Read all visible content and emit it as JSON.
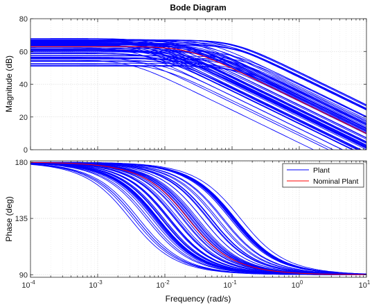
{
  "title": "Bode Diagram",
  "xlabel": "Frequency  (rad/s)",
  "legend": {
    "placement": "top-right",
    "items": [
      {
        "label": "Plant",
        "color": "#0000ff"
      },
      {
        "label": "Nominal Plant",
        "color": "#ff0000"
      }
    ]
  },
  "chart_data": [
    {
      "type": "line",
      "panel": "magnitude",
      "title": "Bode Diagram",
      "ylabel": "Magnitude (dB)",
      "xscale": "log",
      "xlim": [
        0.0001,
        10
      ],
      "ylim": [
        0,
        80
      ],
      "xticks": [
        "10^-4",
        "10^-3",
        "10^-2",
        "10^-1",
        "10^0",
        "10^1"
      ],
      "yticks": [
        0,
        20,
        40,
        60,
        80
      ],
      "grid": true,
      "model": "first-order lag: magnitude = K_dB - 10*log10(1 + (w/wc)^2)",
      "series": [
        {
          "legend": "Plant",
          "color": "#0000ff",
          "count": 70,
          "K_dB_range": [
            51,
            68
          ],
          "corner_wc_range": [
            0.003,
            0.15
          ]
        },
        {
          "legend": "Nominal Plant",
          "color": "#ff0000",
          "K_dB": 63,
          "corner_wc": 0.022
        }
      ]
    },
    {
      "type": "line",
      "panel": "phase",
      "ylabel": "Phase (deg)",
      "xlabel": "Frequency  (rad/s)",
      "xscale": "log",
      "xlim": [
        0.0001,
        10
      ],
      "ylim": [
        88,
        181
      ],
      "xticks": [
        "10^-4",
        "10^-3",
        "10^-2",
        "10^-1",
        "10^0",
        "10^1"
      ],
      "yticks": [
        90,
        135,
        180
      ],
      "grid": true,
      "model": "phase = 180 - atan(w/wc) in degrees",
      "series": [
        {
          "legend": "Plant",
          "color": "#0000ff",
          "count": 70,
          "corner_wc_range": [
            0.003,
            0.15
          ]
        },
        {
          "legend": "Nominal Plant",
          "color": "#ff0000",
          "corner_wc": 0.022
        }
      ]
    }
  ]
}
